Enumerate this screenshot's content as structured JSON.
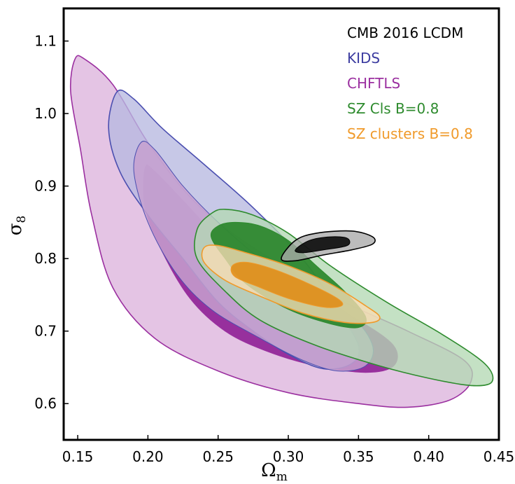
{
  "chart_data": {
    "type": "contour",
    "title": "",
    "xlabel": "Ω",
    "xlabel_sub": "m",
    "ylabel": "σ",
    "ylabel_sub": "8",
    "xlim": [
      0.14,
      0.45
    ],
    "ylim": [
      0.55,
      1.145
    ],
    "xticks": [
      0.15,
      0.2,
      0.25,
      0.3,
      0.35,
      0.4,
      0.45
    ],
    "xtick_labels": [
      "0.15",
      "0.20",
      "0.25",
      "0.30",
      "0.35",
      "0.40",
      "0.45"
    ],
    "yticks": [
      0.6,
      0.7,
      0.8,
      0.9,
      1.0,
      1.1
    ],
    "ytick_labels": [
      "0.6",
      "0.7",
      "0.8",
      "0.9",
      "1.0",
      "1.1"
    ],
    "grid": false,
    "legend_position": "top-right",
    "series": [
      {
        "name": "CHFTLS",
        "color": "#9b30a0",
        "outer_fill": "#ddb4dd",
        "inner_fill": "#8a1690",
        "contour_outer": [
          [
            0.148,
            1.075
          ],
          [
            0.155,
            1.075
          ],
          [
            0.175,
            1.04
          ],
          [
            0.2,
            0.96
          ],
          [
            0.23,
            0.885
          ],
          [
            0.26,
            0.835
          ],
          [
            0.3,
            0.785
          ],
          [
            0.34,
            0.74
          ],
          [
            0.385,
            0.7
          ],
          [
            0.425,
            0.66
          ],
          [
            0.43,
            0.63
          ],
          [
            0.415,
            0.605
          ],
          [
            0.385,
            0.595
          ],
          [
            0.35,
            0.6
          ],
          [
            0.3,
            0.615
          ],
          [
            0.25,
            0.645
          ],
          [
            0.205,
            0.69
          ],
          [
            0.175,
            0.76
          ],
          [
            0.16,
            0.86
          ],
          [
            0.152,
            0.95
          ],
          [
            0.145,
            1.03
          ]
        ],
        "contour_inner": [
          [
            0.198,
            0.925
          ],
          [
            0.205,
            0.92
          ],
          [
            0.225,
            0.88
          ],
          [
            0.25,
            0.83
          ],
          [
            0.28,
            0.79
          ],
          [
            0.315,
            0.75
          ],
          [
            0.35,
            0.715
          ],
          [
            0.375,
            0.68
          ],
          [
            0.375,
            0.652
          ],
          [
            0.355,
            0.643
          ],
          [
            0.32,
            0.652
          ],
          [
            0.285,
            0.672
          ],
          [
            0.255,
            0.7
          ],
          [
            0.23,
            0.745
          ],
          [
            0.21,
            0.81
          ],
          [
            0.198,
            0.87
          ]
        ]
      },
      {
        "name": "KIDS",
        "color": "#4b4fb0",
        "outer_fill": "#b7b8e0",
        "inner_fill": "#c5a0cf",
        "contour_outer": [
          [
            0.178,
            1.03
          ],
          [
            0.19,
            1.02
          ],
          [
            0.21,
            0.98
          ],
          [
            0.24,
            0.93
          ],
          [
            0.275,
            0.87
          ],
          [
            0.31,
            0.8
          ],
          [
            0.335,
            0.73
          ],
          [
            0.35,
            0.68
          ],
          [
            0.345,
            0.655
          ],
          [
            0.325,
            0.648
          ],
          [
            0.3,
            0.668
          ],
          [
            0.275,
            0.7
          ],
          [
            0.25,
            0.74
          ],
          [
            0.225,
            0.8
          ],
          [
            0.2,
            0.86
          ],
          [
            0.18,
            0.92
          ],
          [
            0.172,
            0.98
          ]
        ],
        "contour_inner": [
          [
            0.195,
            0.96
          ],
          [
            0.205,
            0.95
          ],
          [
            0.225,
            0.9
          ],
          [
            0.25,
            0.85
          ],
          [
            0.28,
            0.8
          ],
          [
            0.31,
            0.76
          ],
          [
            0.345,
            0.72
          ],
          [
            0.36,
            0.68
          ],
          [
            0.355,
            0.652
          ],
          [
            0.335,
            0.645
          ],
          [
            0.31,
            0.66
          ],
          [
            0.28,
            0.69
          ],
          [
            0.245,
            0.73
          ],
          [
            0.22,
            0.78
          ],
          [
            0.2,
            0.85
          ],
          [
            0.19,
            0.92
          ]
        ]
      },
      {
        "name": "SZ Cls B=0.8",
        "color": "#2e8b2e",
        "outer_fill": "#b3d8b3",
        "inner_fill": "#1f7f1f",
        "contour_outer": [
          [
            0.245,
            0.862
          ],
          [
            0.255,
            0.868
          ],
          [
            0.275,
            0.86
          ],
          [
            0.3,
            0.835
          ],
          [
            0.33,
            0.79
          ],
          [
            0.37,
            0.74
          ],
          [
            0.41,
            0.695
          ],
          [
            0.44,
            0.655
          ],
          [
            0.445,
            0.63
          ],
          [
            0.43,
            0.625
          ],
          [
            0.4,
            0.635
          ],
          [
            0.365,
            0.652
          ],
          [
            0.32,
            0.68
          ],
          [
            0.28,
            0.715
          ],
          [
            0.255,
            0.755
          ],
          [
            0.235,
            0.8
          ],
          [
            0.235,
            0.84
          ]
        ],
        "contour_inner": [
          [
            0.25,
            0.845
          ],
          [
            0.262,
            0.85
          ],
          [
            0.28,
            0.845
          ],
          [
            0.3,
            0.825
          ],
          [
            0.32,
            0.79
          ],
          [
            0.34,
            0.755
          ],
          [
            0.355,
            0.72
          ],
          [
            0.35,
            0.705
          ],
          [
            0.33,
            0.71
          ],
          [
            0.3,
            0.73
          ],
          [
            0.27,
            0.765
          ],
          [
            0.255,
            0.8
          ],
          [
            0.245,
            0.83
          ]
        ]
      },
      {
        "name": "SZ clusters B=0.8",
        "color": "#f09a2a",
        "outer_fill": "#f9dcb4",
        "inner_fill": "#e0890f",
        "contour_outer": [
          [
            0.24,
            0.815
          ],
          [
            0.25,
            0.818
          ],
          [
            0.27,
            0.808
          ],
          [
            0.3,
            0.79
          ],
          [
            0.33,
            0.765
          ],
          [
            0.355,
            0.735
          ],
          [
            0.365,
            0.72
          ],
          [
            0.36,
            0.712
          ],
          [
            0.34,
            0.712
          ],
          [
            0.31,
            0.725
          ],
          [
            0.28,
            0.748
          ],
          [
            0.255,
            0.77
          ],
          [
            0.24,
            0.795
          ]
        ],
        "contour_inner": [
          [
            0.26,
            0.79
          ],
          [
            0.27,
            0.795
          ],
          [
            0.29,
            0.785
          ],
          [
            0.315,
            0.765
          ],
          [
            0.335,
            0.745
          ],
          [
            0.338,
            0.735
          ],
          [
            0.325,
            0.733
          ],
          [
            0.3,
            0.745
          ],
          [
            0.28,
            0.76
          ],
          [
            0.262,
            0.775
          ]
        ]
      },
      {
        "name": "CMB 2016 LCDM",
        "color": "#000000",
        "outer_fill": "#a9a9a9",
        "inner_fill": "#000000",
        "contour_outer": [
          [
            0.295,
            0.8
          ],
          [
            0.305,
            0.825
          ],
          [
            0.32,
            0.835
          ],
          [
            0.345,
            0.838
          ],
          [
            0.36,
            0.83
          ],
          [
            0.36,
            0.82
          ],
          [
            0.345,
            0.812
          ],
          [
            0.325,
            0.805
          ],
          [
            0.305,
            0.797
          ]
        ],
        "contour_inner": [
          [
            0.305,
            0.812
          ],
          [
            0.315,
            0.825
          ],
          [
            0.33,
            0.83
          ],
          [
            0.342,
            0.828
          ],
          [
            0.342,
            0.818
          ],
          [
            0.325,
            0.812
          ],
          [
            0.31,
            0.808
          ]
        ]
      }
    ],
    "legend": [
      {
        "label": "CMB 2016 LCDM",
        "color": "#000000"
      },
      {
        "label": "KIDS",
        "color": "#3c3ca0"
      },
      {
        "label": "CHFTLS",
        "color": "#9b30a0"
      },
      {
        "label": "SZ Cls B=0.8",
        "color": "#2e8b2e"
      },
      {
        "label": "SZ clusters B=0.8",
        "color": "#f09a2a"
      }
    ]
  }
}
